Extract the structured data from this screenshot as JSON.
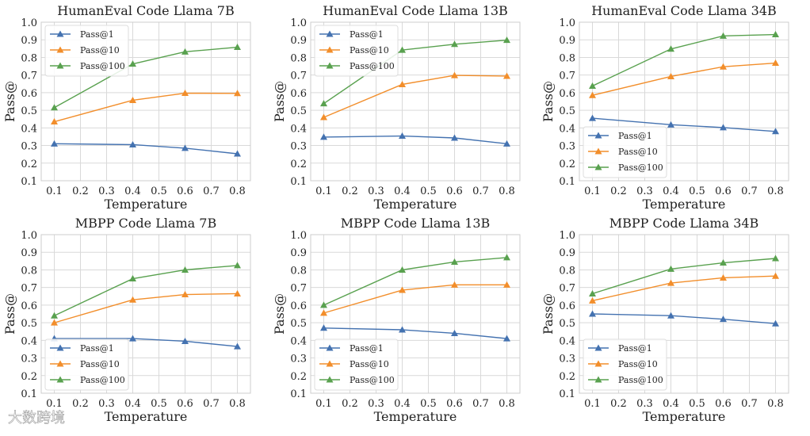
{
  "chart_data": [
    {
      "type": "line",
      "title": "HumanEval Code Llama 7B",
      "xlabel": "Temperature",
      "ylabel": "Pass@",
      "x": [
        0.1,
        0.4,
        0.6,
        0.8
      ],
      "xlim": [
        0.05,
        0.85
      ],
      "ylim": [
        0.1,
        1.0
      ],
      "xticks": [
        "0.1",
        "0.2",
        "0.3",
        "0.4",
        "0.5",
        "0.6",
        "0.7",
        "0.8"
      ],
      "yticks": [
        "0.1",
        "0.2",
        "0.3",
        "0.4",
        "0.5",
        "0.6",
        "0.7",
        "0.8",
        "0.9",
        "1.0"
      ],
      "grid": true,
      "legend": "top-left",
      "series": [
        {
          "name": "Pass@1",
          "values": [
            0.31,
            0.305,
            0.285,
            0.253
          ]
        },
        {
          "name": "Pass@10",
          "values": [
            0.435,
            0.557,
            0.597,
            0.596
          ]
        },
        {
          "name": "Pass@100",
          "values": [
            0.515,
            0.763,
            0.832,
            0.858
          ]
        }
      ]
    },
    {
      "type": "line",
      "title": "HumanEval Code Llama 13B",
      "xlabel": "Temperature",
      "ylabel": "Pass@",
      "x": [
        0.1,
        0.4,
        0.6,
        0.8
      ],
      "xlim": [
        0.05,
        0.85
      ],
      "ylim": [
        0.1,
        1.0
      ],
      "xticks": [
        "0.1",
        "0.2",
        "0.3",
        "0.4",
        "0.5",
        "0.6",
        "0.7",
        "0.8"
      ],
      "yticks": [
        "0.1",
        "0.2",
        "0.3",
        "0.4",
        "0.5",
        "0.6",
        "0.7",
        "0.8",
        "0.9",
        "1.0"
      ],
      "grid": true,
      "legend": "top-left",
      "series": [
        {
          "name": "Pass@1",
          "values": [
            0.348,
            0.354,
            0.343,
            0.31
          ]
        },
        {
          "name": "Pass@10",
          "values": [
            0.46,
            0.647,
            0.698,
            0.694
          ]
        },
        {
          "name": "Pass@100",
          "values": [
            0.538,
            0.842,
            0.875,
            0.898
          ]
        }
      ]
    },
    {
      "type": "line",
      "title": "HumanEval Code Llama 34B",
      "xlabel": "Temperature",
      "ylabel": "Pass@",
      "x": [
        0.1,
        0.4,
        0.6,
        0.8
      ],
      "xlim": [
        0.05,
        0.85
      ],
      "ylim": [
        0.1,
        1.0
      ],
      "xticks": [
        "0.1",
        "0.2",
        "0.3",
        "0.4",
        "0.5",
        "0.6",
        "0.7",
        "0.8"
      ],
      "yticks": [
        "0.1",
        "0.2",
        "0.3",
        "0.4",
        "0.5",
        "0.6",
        "0.7",
        "0.8",
        "0.9",
        "1.0"
      ],
      "grid": true,
      "legend": "bottom-left",
      "series": [
        {
          "name": "Pass@1",
          "values": [
            0.455,
            0.418,
            0.402,
            0.38
          ]
        },
        {
          "name": "Pass@10",
          "values": [
            0.585,
            0.692,
            0.747,
            0.768
          ]
        },
        {
          "name": "Pass@100",
          "values": [
            0.638,
            0.848,
            0.922,
            0.93
          ]
        }
      ]
    },
    {
      "type": "line",
      "title": "MBPP Code Llama 7B",
      "xlabel": "Temperature",
      "ylabel": "Pass@",
      "x": [
        0.1,
        0.4,
        0.6,
        0.8
      ],
      "xlim": [
        0.05,
        0.85
      ],
      "ylim": [
        0.1,
        1.0
      ],
      "xticks": [
        "0.1",
        "0.2",
        "0.3",
        "0.4",
        "0.5",
        "0.6",
        "0.7",
        "0.8"
      ],
      "yticks": [
        "0.1",
        "0.2",
        "0.3",
        "0.4",
        "0.5",
        "0.6",
        "0.7",
        "0.8",
        "0.9",
        "1.0"
      ],
      "grid": true,
      "legend": "bottom-left",
      "series": [
        {
          "name": "Pass@1",
          "values": [
            0.41,
            0.41,
            0.395,
            0.365
          ]
        },
        {
          "name": "Pass@10",
          "values": [
            0.5,
            0.63,
            0.66,
            0.665
          ]
        },
        {
          "name": "Pass@100",
          "values": [
            0.54,
            0.75,
            0.8,
            0.825
          ]
        }
      ]
    },
    {
      "type": "line",
      "title": "MBPP Code Llama 13B",
      "xlabel": "Temperature",
      "ylabel": "Pass@",
      "x": [
        0.1,
        0.4,
        0.6,
        0.8
      ],
      "xlim": [
        0.05,
        0.85
      ],
      "ylim": [
        0.1,
        1.0
      ],
      "xticks": [
        "0.1",
        "0.2",
        "0.3",
        "0.4",
        "0.5",
        "0.6",
        "0.7",
        "0.8"
      ],
      "yticks": [
        "0.1",
        "0.2",
        "0.3",
        "0.4",
        "0.5",
        "0.6",
        "0.7",
        "0.8",
        "0.9",
        "1.0"
      ],
      "grid": true,
      "legend": "bottom-left",
      "series": [
        {
          "name": "Pass@1",
          "values": [
            0.47,
            0.46,
            0.44,
            0.41
          ]
        },
        {
          "name": "Pass@10",
          "values": [
            0.555,
            0.685,
            0.715,
            0.715
          ]
        },
        {
          "name": "Pass@100",
          "values": [
            0.6,
            0.8,
            0.845,
            0.87
          ]
        }
      ]
    },
    {
      "type": "line",
      "title": "MBPP Code Llama 34B",
      "xlabel": "Temperature",
      "ylabel": "Pass@",
      "x": [
        0.1,
        0.4,
        0.6,
        0.8
      ],
      "xlim": [
        0.05,
        0.85
      ],
      "ylim": [
        0.1,
        1.0
      ],
      "xticks": [
        "0.1",
        "0.2",
        "0.3",
        "0.4",
        "0.5",
        "0.6",
        "0.7",
        "0.8"
      ],
      "yticks": [
        "0.1",
        "0.2",
        "0.3",
        "0.4",
        "0.5",
        "0.6",
        "0.7",
        "0.8",
        "0.9",
        "1.0"
      ],
      "grid": true,
      "legend": "bottom-left",
      "series": [
        {
          "name": "Pass@1",
          "values": [
            0.55,
            0.54,
            0.52,
            0.495
          ]
        },
        {
          "name": "Pass@10",
          "values": [
            0.625,
            0.725,
            0.755,
            0.765
          ]
        },
        {
          "name": "Pass@100",
          "values": [
            0.665,
            0.805,
            0.84,
            0.865
          ]
        }
      ]
    }
  ],
  "series_colors": [
    "#4472b0",
    "#f28e2b",
    "#59a14f"
  ],
  "watermark": "大数跨境"
}
